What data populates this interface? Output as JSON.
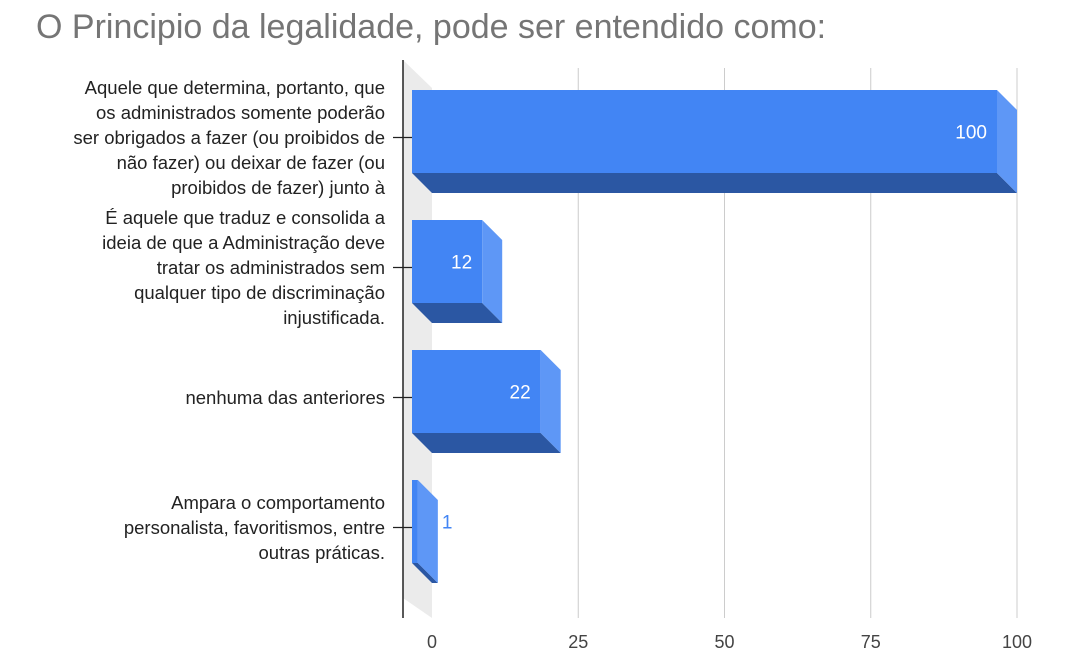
{
  "chart_data": {
    "type": "bar",
    "orientation": "horizontal",
    "style": "3d",
    "title": "O Principio da legalidade, pode ser entendido como:",
    "categories": [
      "Aquele que determina, portanto, que\nos administrados somente poderão\nser obrigados a fazer (ou proibidos de\nnão fazer) ou deixar de fazer (ou\nproibidos de fazer) junto à",
      "É aquele que traduz e consolida a\nideia de que a Administração deve\ntratar os administrados sem\nqualquer tipo de discriminação\ninjustificada.",
      "nenhuma das anteriores",
      "Ampara o comportamento\npersonalista, favoritismos, entre\noutras práticas."
    ],
    "values": [
      100,
      12,
      22,
      1
    ],
    "data_labels": [
      "100",
      "12",
      "22",
      "1"
    ],
    "xlim": [
      0,
      100
    ],
    "x_ticks": [
      "0",
      "25",
      "50",
      "75",
      "100"
    ],
    "grid": true,
    "colors": {
      "bar_front": "#4285f4",
      "bar_top": "#2b57a3",
      "bar_side": "#5e97f6"
    }
  }
}
